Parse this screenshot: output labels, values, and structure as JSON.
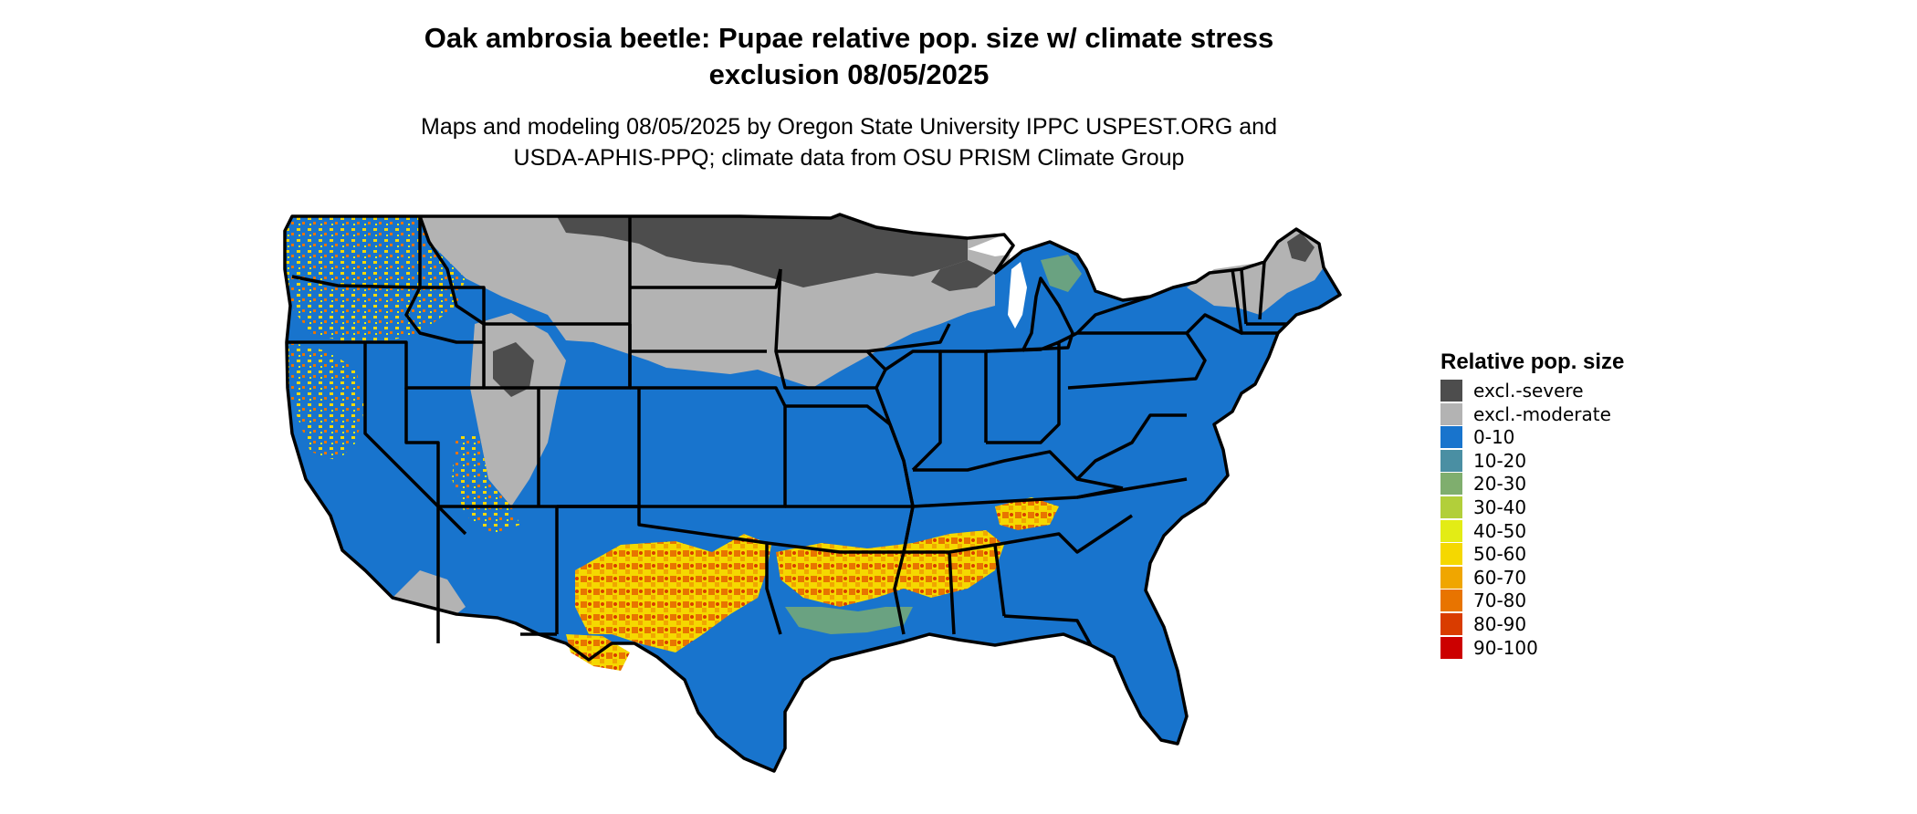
{
  "title_line1": "Oak ambrosia beetle: Pupae relative pop. size w/ climate stress",
  "title_line2": "exclusion 08/05/2025",
  "subtitle_line1": "Maps and modeling 08/05/2025 by Oregon State University IPPC USPEST.ORG and",
  "subtitle_line2": "USDA-APHIS-PPQ; climate data from OSU PRISM Climate Group",
  "legend": {
    "title": "Relative pop. size",
    "items": [
      {
        "label": "excl.-severe",
        "color": "#4d4d4d"
      },
      {
        "label": "excl.-moderate",
        "color": "#b3b3b3"
      },
      {
        "label": "0-10",
        "color": "#1874cd"
      },
      {
        "label": "10-20",
        "color": "#4a8fa3"
      },
      {
        "label": "20-30",
        "color": "#7fae6e"
      },
      {
        "label": "30-40",
        "color": "#b2cf3a"
      },
      {
        "label": "40-50",
        "color": "#e3ec15"
      },
      {
        "label": "50-60",
        "color": "#f5d800"
      },
      {
        "label": "60-70",
        "color": "#f0a600"
      },
      {
        "label": "70-80",
        "color": "#e87400"
      },
      {
        "label": "80-90",
        "color": "#d93c00"
      },
      {
        "label": "90-100",
        "color": "#cc0000"
      }
    ]
  }
}
